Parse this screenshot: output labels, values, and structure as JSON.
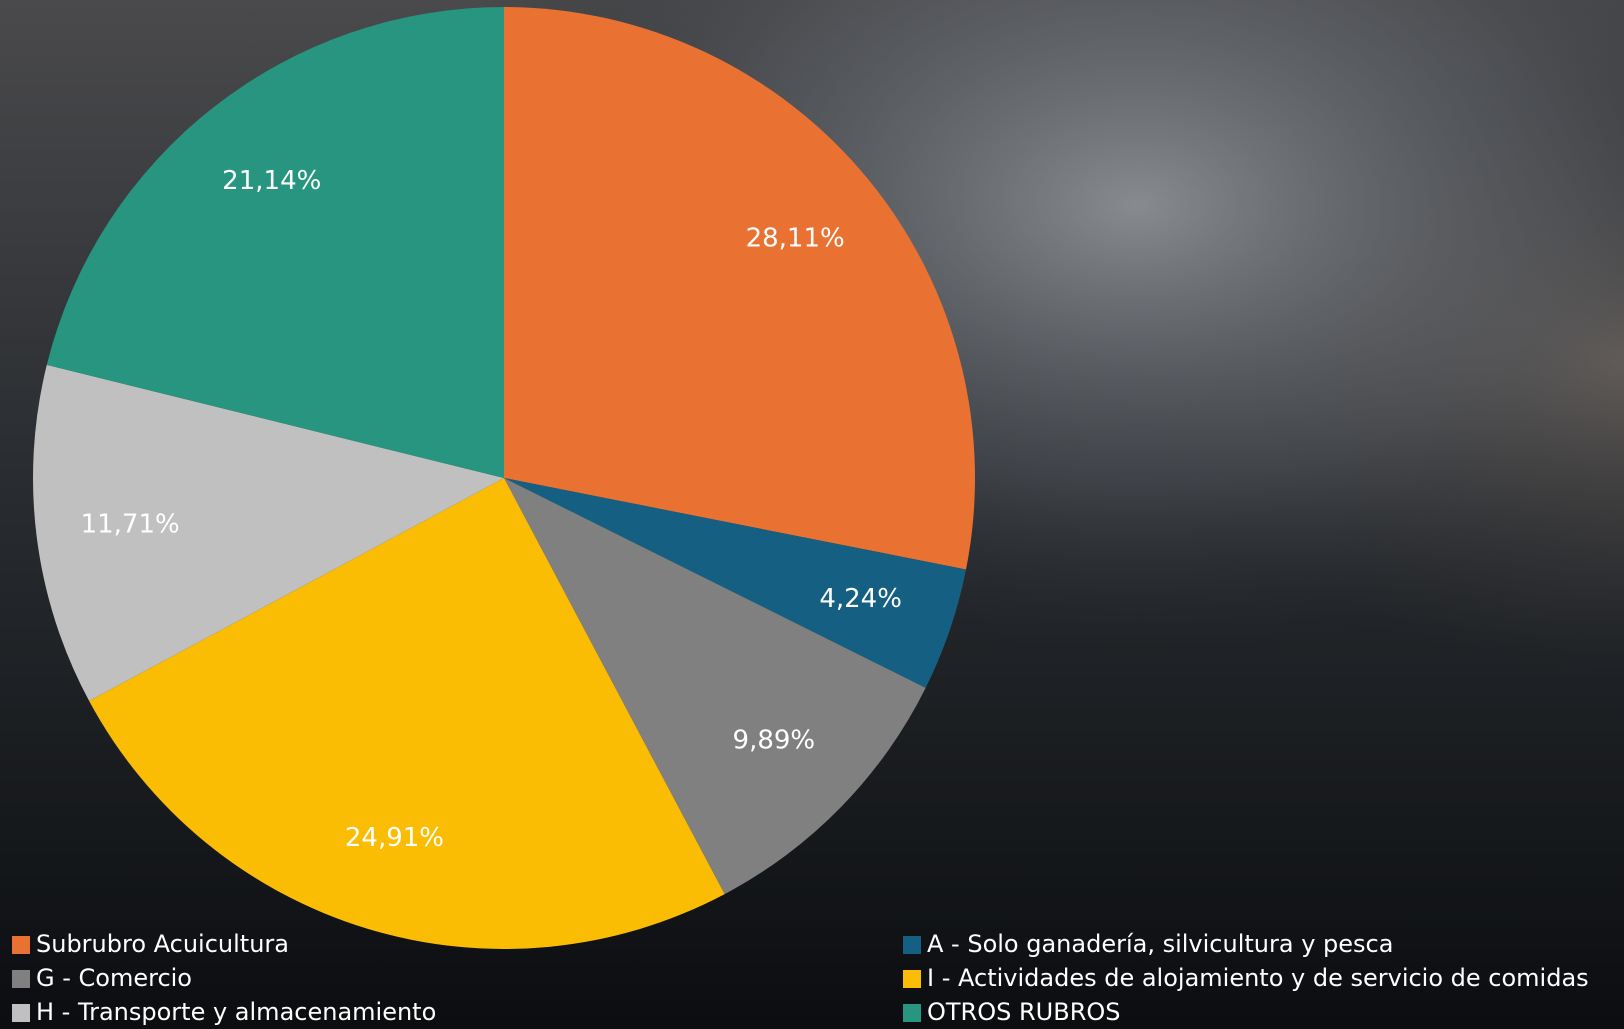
{
  "chart_data": {
    "type": "pie",
    "categories": [
      "Subrubro Acuicultura",
      "A - Solo ganadería, silvicultura y pesca",
      "G - Comercio",
      "I - Actividades de alojamiento y de servicio de comidas",
      "H - Transporte y almacenamiento",
      "OTROS RUBROS"
    ],
    "values": [
      28.11,
      4.24,
      9.89,
      24.91,
      11.71,
      21.14
    ],
    "value_labels": [
      "28,11%",
      "4,24%",
      "9,89%",
      "24,91%",
      "11,71%",
      "21,14%"
    ],
    "colors": [
      "#E97132",
      "#156082",
      "#808080",
      "#FBBC04",
      "#C0C0C0",
      "#27957F"
    ],
    "legend": "bottom"
  }
}
